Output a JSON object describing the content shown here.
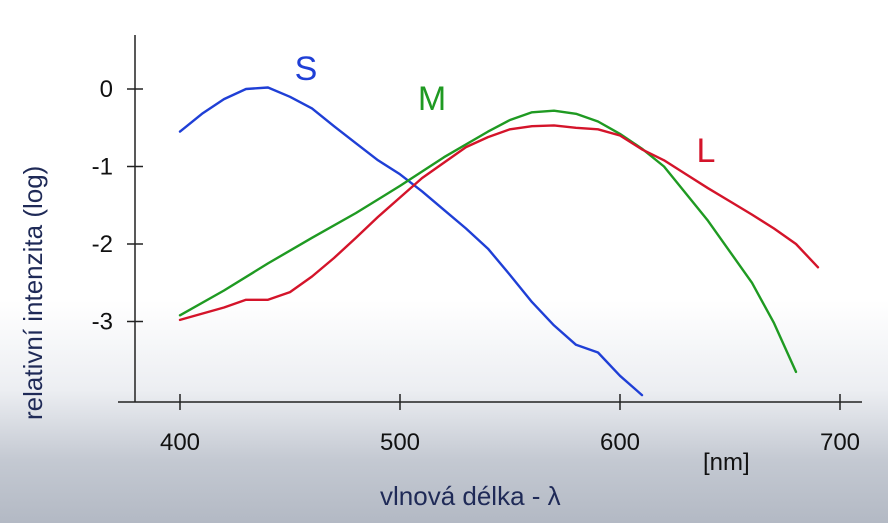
{
  "chart_data": {
    "type": "line",
    "xlabel": "vlnová délka - λ",
    "ylabel": "relativní intenzita (log)",
    "x_unit": "[nm]",
    "xlim": [
      380,
      720
    ],
    "ylim": [
      -4.0,
      0.6
    ],
    "x_ticks": [
      400,
      500,
      600,
      700
    ],
    "y_ticks": [
      0,
      -1,
      -2,
      -3
    ],
    "series": [
      {
        "name": "S",
        "color": "#1f3fd6",
        "x": [
          400,
          410,
          420,
          430,
          440,
          450,
          460,
          470,
          480,
          490,
          500,
          510,
          520,
          530,
          540,
          550,
          560,
          570,
          580,
          590,
          600,
          610
        ],
        "y": [
          -0.55,
          -0.32,
          -0.13,
          0.0,
          0.02,
          -0.1,
          -0.25,
          -0.48,
          -0.7,
          -0.92,
          -1.1,
          -1.32,
          -1.56,
          -1.8,
          -2.06,
          -2.4,
          -2.75,
          -3.05,
          -3.3,
          -3.4,
          -3.7,
          -3.95
        ]
      },
      {
        "name": "M",
        "color": "#1f9a22",
        "x": [
          400,
          420,
          440,
          460,
          480,
          500,
          520,
          540,
          550,
          560,
          570,
          580,
          590,
          600,
          610,
          620,
          630,
          640,
          650,
          660,
          670,
          680
        ],
        "y": [
          -2.92,
          -2.6,
          -2.25,
          -1.92,
          -1.6,
          -1.25,
          -0.88,
          -0.55,
          -0.4,
          -0.3,
          -0.28,
          -0.32,
          -0.42,
          -0.58,
          -0.77,
          -1.0,
          -1.35,
          -1.7,
          -2.1,
          -2.5,
          -3.02,
          -3.65
        ]
      },
      {
        "name": "L",
        "color": "#d4142a",
        "x": [
          400,
          420,
          430,
          440,
          450,
          460,
          470,
          480,
          490,
          500,
          510,
          520,
          530,
          540,
          550,
          560,
          570,
          580,
          590,
          600,
          610,
          620,
          630,
          640,
          650,
          660,
          670,
          680,
          690
        ],
        "y": [
          -2.98,
          -2.82,
          -2.72,
          -2.72,
          -2.62,
          -2.42,
          -2.18,
          -1.92,
          -1.65,
          -1.4,
          -1.15,
          -0.95,
          -0.75,
          -0.62,
          -0.52,
          -0.48,
          -0.47,
          -0.5,
          -0.52,
          -0.6,
          -0.78,
          -0.92,
          -1.1,
          -1.28,
          -1.45,
          -1.62,
          -1.8,
          -2.0,
          -2.3
        ]
      }
    ]
  }
}
